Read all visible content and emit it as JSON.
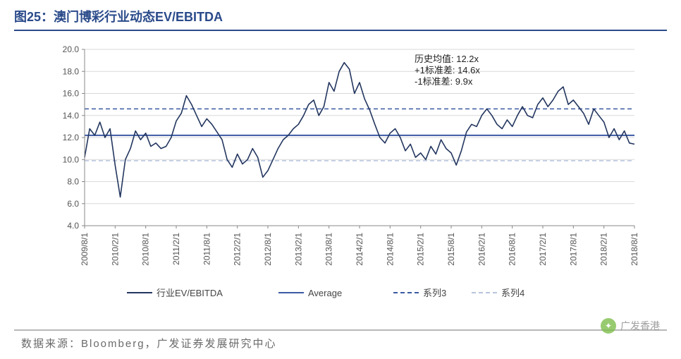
{
  "title": "图25：澳门博彩行业动态EV/EBITDA",
  "source": "数据来源：Bloomberg，广发证券发展研究中心",
  "watermark": "广发香港",
  "annotations": {
    "hist_avg_label": "历史均值:",
    "hist_avg_value": "12.2x",
    "plus1sd_label": "+1标准差:",
    "plus1sd_value": "14.6x",
    "minus1sd_label": "-1标准差:",
    "minus1sd_value": "9.9x"
  },
  "chart": {
    "type": "line",
    "background_color": "#ffffff",
    "grid_color": "#d9d9d9",
    "axis_color": "#888888",
    "axis_fontsize": 12,
    "ylim": [
      4.0,
      20.0
    ],
    "ytick_step": 2.0,
    "yticks": [
      "4.0",
      "6.0",
      "8.0",
      "10.0",
      "12.0",
      "14.0",
      "16.0",
      "18.0",
      "20.0"
    ],
    "xticks": [
      "2009/8/1",
      "2010/2/1",
      "2010/8/1",
      "2011/2/1",
      "2011/8/1",
      "2012/2/1",
      "2012/8/1",
      "2013/2/1",
      "2013/8/1",
      "2014/2/1",
      "2014/8/1",
      "2015/2/1",
      "2015/8/1",
      "2016/2/1",
      "2016/8/1",
      "2017/2/1",
      "2017/8/1",
      "2018/2/1",
      "2018/8/1"
    ],
    "hlines": {
      "average": {
        "value": 12.2,
        "color": "#3b5aa3",
        "width": 2,
        "dash": "none"
      },
      "plus1sd": {
        "value": 14.6,
        "color": "#3b5aa3",
        "width": 1.5,
        "dash": "6,4"
      },
      "minus1sd": {
        "value": 9.9,
        "color": "#b8c4dd",
        "width": 1.5,
        "dash": "6,4"
      }
    },
    "series": {
      "name": "行业EV/EBITDA",
      "color": "#23365f",
      "width": 1.6,
      "x": [
        0,
        1,
        2,
        3,
        4,
        5,
        6,
        7,
        8,
        9,
        10,
        11,
        12,
        13,
        14,
        15,
        16,
        17,
        18,
        19,
        20,
        21,
        22,
        23,
        24,
        25,
        26,
        27,
        28,
        29,
        30,
        31,
        32,
        33,
        34,
        35,
        36,
        37,
        38,
        39,
        40,
        41,
        42,
        43,
        44,
        45,
        46,
        47,
        48,
        49,
        50,
        51,
        52,
        53,
        54,
        55,
        56,
        57,
        58,
        59,
        60,
        61,
        62,
        63,
        64,
        65,
        66,
        67,
        68,
        69,
        70,
        71,
        72,
        73,
        74,
        75,
        76,
        77,
        78,
        79,
        80,
        81,
        82,
        83,
        84,
        85,
        86,
        87,
        88,
        89,
        90,
        91,
        92,
        93,
        94,
        95,
        96,
        97,
        98,
        99,
        100,
        101,
        102,
        103,
        104,
        105,
        106,
        107,
        108
      ],
      "y": [
        10.2,
        12.8,
        12.2,
        13.4,
        12.0,
        12.8,
        9.5,
        6.6,
        10.0,
        11.0,
        12.6,
        11.8,
        12.4,
        11.2,
        11.5,
        11.0,
        11.2,
        12.0,
        13.5,
        14.2,
        15.8,
        15.0,
        14.0,
        13.0,
        13.7,
        13.2,
        12.5,
        11.8,
        10.0,
        9.3,
        10.5,
        9.6,
        10.0,
        11.0,
        10.2,
        8.4,
        9.0,
        10.0,
        11.0,
        11.8,
        12.2,
        12.8,
        13.2,
        14.0,
        15.0,
        15.4,
        14.0,
        14.8,
        17.0,
        16.2,
        18.0,
        18.8,
        18.2,
        16.0,
        17.0,
        15.5,
        14.5,
        13.2,
        12.0,
        11.5,
        12.4,
        12.8,
        12.0,
        10.8,
        11.4,
        10.2,
        10.6,
        10.0,
        11.2,
        10.5,
        11.8,
        11.0,
        10.6,
        9.5,
        10.8,
        12.5,
        13.2,
        13.0,
        14.0,
        14.6,
        14.0,
        13.2,
        12.8,
        13.6,
        13.0,
        14.0,
        14.8,
        14.0,
        13.8,
        15.0,
        15.6,
        14.8,
        15.4,
        16.2,
        16.6,
        15.0,
        15.4,
        14.8,
        14.2,
        13.2,
        14.6,
        14.0,
        13.4,
        12.0,
        12.8,
        11.8,
        12.6,
        11.5,
        11.4
      ]
    },
    "legend": {
      "items": [
        {
          "label": "行业EV/EBITDA",
          "color": "#23365f",
          "dash": "none",
          "width": 2
        },
        {
          "label": "Average",
          "color": "#3b5aa3",
          "dash": "none",
          "width": 2
        },
        {
          "label": "系列3",
          "color": "#3b5aa3",
          "dash": "6,4",
          "width": 2
        },
        {
          "label": "系列4",
          "color": "#b8c4dd",
          "dash": "6,4",
          "width": 2
        }
      ],
      "fontsize": 13
    }
  }
}
